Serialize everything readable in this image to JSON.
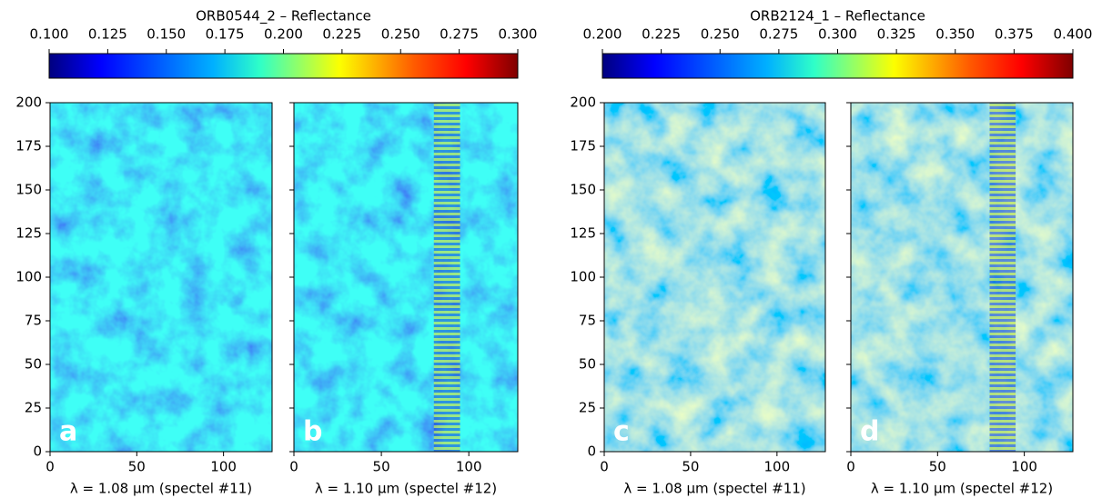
{
  "chart_data": [
    {
      "type": "heatmap",
      "title": "ORB0544_2 – Reflectance",
      "colormap": "jet",
      "clim": [
        0.1,
        0.3
      ],
      "cticks": [
        {
          "value": 0.1,
          "label": "0.100"
        },
        0.125,
        {
          "value": 0.15,
          "label": "0.150"
        },
        0.175,
        {
          "value": 0.2,
          "label": "0.200"
        },
        0.225,
        {
          "value": 0.25,
          "label": "0.250"
        },
        0.275,
        {
          "value": 0.3,
          "label": "0.300"
        }
      ],
      "xlim": [
        0,
        128
      ],
      "ylim": [
        0,
        200
      ],
      "xticks": [
        0,
        50,
        100
      ],
      "yticks": [
        0,
        25,
        50,
        75,
        100,
        125,
        150,
        175,
        200
      ],
      "panels": [
        {
          "label": "a",
          "xlabel": "λ = 1.08 μm (spectel #11)"
        },
        {
          "label": "b",
          "xlabel": "λ = 1.10 μm (spectel #12)"
        }
      ]
    },
    {
      "type": "heatmap",
      "title": "ORB2124_1 – Reflectance",
      "colormap": "jet",
      "clim": [
        0.2,
        0.4
      ],
      "cticks": [
        {
          "value": 0.2,
          "label": "0.200"
        },
        0.225,
        {
          "value": 0.25,
          "label": "0.250"
        },
        0.275,
        {
          "value": 0.3,
          "label": "0.300"
        },
        0.325,
        {
          "value": 0.35,
          "label": "0.350"
        },
        0.375,
        {
          "value": 0.4,
          "label": "0.400"
        }
      ],
      "xlim": [
        0,
        128
      ],
      "ylim": [
        0,
        200
      ],
      "xticks": [
        0,
        50,
        100
      ],
      "yticks": [
        0,
        25,
        50,
        75,
        100,
        125,
        150,
        175,
        200
      ],
      "panels": [
        {
          "label": "c",
          "xlabel": "λ = 1.08 μm (spectel #11)"
        },
        {
          "label": "d",
          "xlabel": "λ = 1.10 μm (spectel #12)"
        }
      ]
    }
  ]
}
